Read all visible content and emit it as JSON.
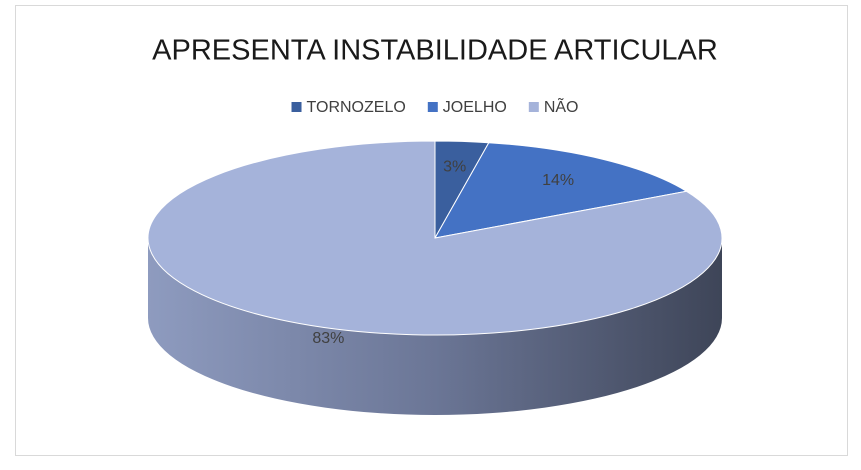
{
  "chart_data": {
    "type": "pie",
    "title": "APRESENTA INSTABILIDADE ARTICULAR",
    "categories": [
      "TORNOZELO",
      "JOELHO",
      "NÃO"
    ],
    "values": [
      3,
      14,
      83
    ],
    "value_labels": [
      "3%",
      "14%",
      "83%"
    ],
    "colors": [
      "#3a5f9e",
      "#4472c4",
      "#a5b3da"
    ],
    "legend": "top"
  }
}
